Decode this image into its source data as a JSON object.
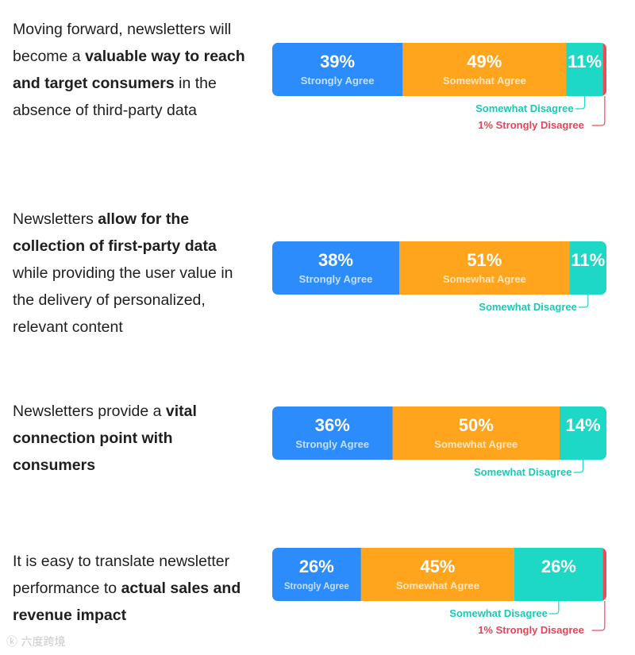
{
  "statements": [
    {
      "parts": [
        {
          "text": "Moving forward, newsletters will become a ",
          "bold": false
        },
        {
          "text": "valuable way to reach and target consumers",
          "bold": true
        },
        {
          "text": " in the absence of third-party data",
          "bold": false
        }
      ]
    },
    {
      "parts": [
        {
          "text": "Newsletters ",
          "bold": false
        },
        {
          "text": "allow for the collection of first-party data",
          "bold": true
        },
        {
          "text": " while providing the user value in the delivery of personalized, relevant content",
          "bold": false
        }
      ]
    },
    {
      "parts": [
        {
          "text": "Newsletters provide a ",
          "bold": false
        },
        {
          "text": "vital connection point with consumers",
          "bold": true
        }
      ]
    },
    {
      "parts": [
        {
          "text": "It is easy to translate newsletter performance to ",
          "bold": false
        },
        {
          "text": "actual sales and revenue impact",
          "bold": true
        }
      ]
    }
  ],
  "colors": {
    "strongly_agree": "#2d8cfb",
    "somewhat_agree": "#ffa41d",
    "somewhat_disagree": "#1dd8c4",
    "strongly_disagree": "#ef4a5c",
    "somewhat_disagree_label": "#1cc8b4",
    "strongly_disagree_label": "#e84457"
  },
  "chart_data": {
    "type": "bar",
    "orientation": "horizontal-stacked-100",
    "categories": [
      "Moving forward, newsletters will become a valuable way to reach and target consumers in the absence of third-party data",
      "Newsletters allow for the collection of first-party data while providing the user value in the delivery of personalized, relevant content",
      "Newsletters provide a vital connection point with consumers",
      "It is easy to translate newsletter performance to actual sales and revenue impact"
    ],
    "series": [
      {
        "name": "Strongly Agree",
        "values": [
          39,
          38,
          36,
          26
        ],
        "labels": [
          "39%",
          "38%",
          "36%",
          "26%"
        ]
      },
      {
        "name": "Somewhat Agree",
        "values": [
          49,
          51,
          50,
          45
        ],
        "labels": [
          "49%",
          "51%",
          "50%",
          "45%"
        ]
      },
      {
        "name": "Somewhat Disagree",
        "values": [
          11,
          11,
          14,
          26
        ],
        "labels": [
          "11%",
          "11%",
          "14%",
          "26%"
        ]
      },
      {
        "name": "Strongly Disagree",
        "values": [
          1,
          0,
          0,
          1
        ],
        "labels": [
          "1% Strongly Disagree",
          "",
          "",
          "1% Strongly Disagree"
        ]
      }
    ],
    "segment_names": [
      "Strongly Agree",
      "Somewhat Agree",
      "Somewhat Disagree"
    ],
    "title": "",
    "xlabel": "",
    "ylabel": "",
    "xlim": [
      0,
      100
    ]
  }
}
